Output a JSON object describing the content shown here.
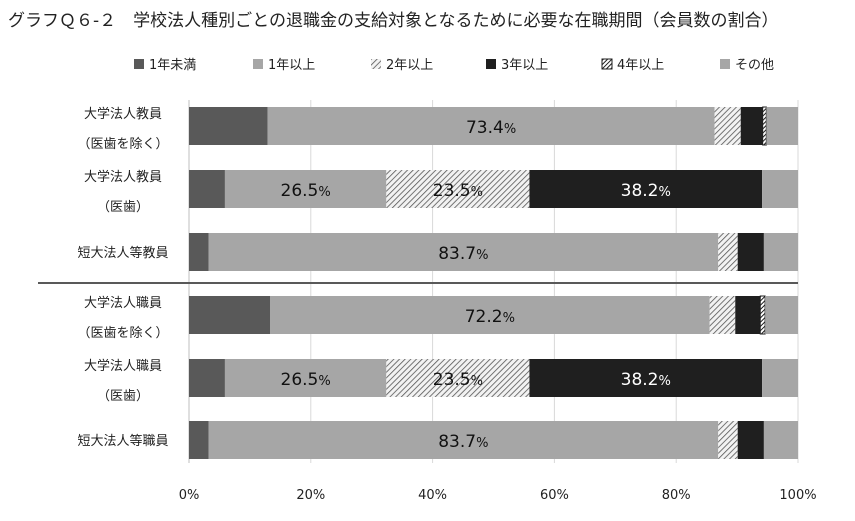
{
  "chart_data": {
    "type": "bar",
    "orientation": "horizontal",
    "stacked": true,
    "title": "グラフＱ６-２　学校法人種別ごとの退職金の支給対象となるために必要な在職期間（会員数の割合）",
    "xlim": [
      0,
      100
    ],
    "x_ticks": [
      "0%",
      "20%",
      "40%",
      "60%",
      "80%",
      "100%"
    ],
    "grid": true,
    "legend_position": "top",
    "categories": [
      {
        "line1": "大学法人教員",
        "line2": "（医歯を除く）"
      },
      {
        "line1": "大学法人教員",
        "line2": "（医歯）"
      },
      {
        "line1": "短大法人等教員",
        "line2": ""
      },
      {
        "line1": "大学法人職員",
        "line2": "（医歯を除く）"
      },
      {
        "line1": "大学法人職員",
        "line2": "（医歯）"
      },
      {
        "line1": "短大法人等職員",
        "line2": ""
      }
    ],
    "series": [
      {
        "name": "1年未満",
        "color": "#595959",
        "pattern": "solid",
        "values": [
          12.9,
          5.9,
          3.2,
          13.3,
          5.9,
          3.2
        ]
      },
      {
        "name": "1年以上",
        "color": "#a6a6a6",
        "pattern": "solid",
        "values": [
          73.4,
          26.5,
          83.7,
          72.2,
          26.5,
          83.7
        ]
      },
      {
        "name": "2年以上",
        "color": "#d9d9d9",
        "pattern": "hatch",
        "values": [
          4.3,
          23.5,
          3.2,
          4.2,
          23.5,
          3.2
        ]
      },
      {
        "name": "3年以上",
        "color": "#1f1f1f",
        "pattern": "solid",
        "values": [
          3.6,
          38.2,
          4.3,
          4.1,
          38.2,
          4.3
        ]
      },
      {
        "name": "4年以上",
        "color": "#1f1f1f",
        "pattern": "diag",
        "values": [
          0.6,
          0,
          0,
          0.8,
          0,
          0
        ]
      },
      {
        "name": "その他",
        "color": "#a6a6a6",
        "pattern": "solid",
        "values": [
          5.2,
          5.9,
          5.6,
          5.4,
          5.9,
          5.6
        ]
      }
    ],
    "data_labels": [
      {
        "row": 0,
        "series": 1,
        "text": "73.4"
      },
      {
        "row": 1,
        "series": 1,
        "text": "26.5"
      },
      {
        "row": 1,
        "series": 2,
        "text": "23.5"
      },
      {
        "row": 1,
        "series": 3,
        "text": "38.2"
      },
      {
        "row": 2,
        "series": 1,
        "text": "83.7"
      },
      {
        "row": 3,
        "series": 1,
        "text": "72.2"
      },
      {
        "row": 4,
        "series": 1,
        "text": "26.5"
      },
      {
        "row": 4,
        "series": 2,
        "text": "23.5"
      },
      {
        "row": 4,
        "series": 3,
        "text": "38.2"
      },
      {
        "row": 5,
        "series": 1,
        "text": "83.7"
      }
    ],
    "data_label_suffix": "%"
  }
}
